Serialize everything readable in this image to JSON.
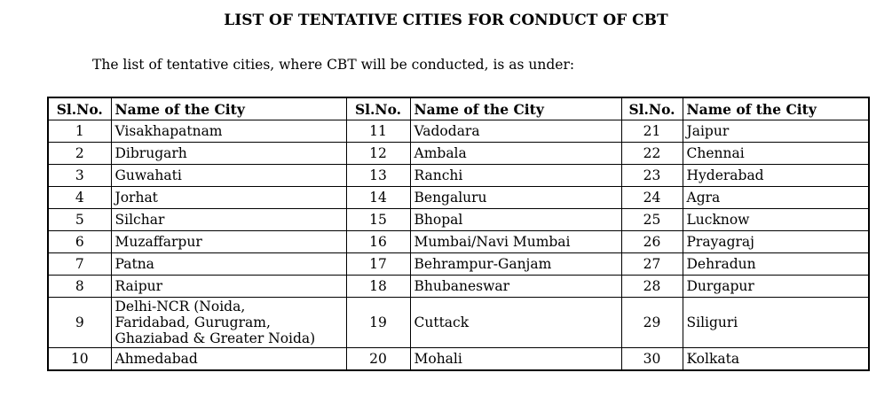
{
  "document": {
    "title": "LIST OF TENTATIVE CITIES FOR CONDUCT OF CBT",
    "intro": "The list of tentative cities, where CBT will be conducted, is as under:"
  },
  "table": {
    "header": {
      "slno": "Sl.No.",
      "city": "Name of the City"
    },
    "rows": [
      {
        "c1": {
          "slno": "1",
          "city": "Visakhapatnam"
        },
        "c2": {
          "slno": "11",
          "city": "Vadodara"
        },
        "c3": {
          "slno": "21",
          "city": "Jaipur"
        }
      },
      {
        "c1": {
          "slno": "2",
          "city": "Dibrugarh"
        },
        "c2": {
          "slno": "12",
          "city": "Ambala"
        },
        "c3": {
          "slno": "22",
          "city": "Chennai"
        }
      },
      {
        "c1": {
          "slno": "3",
          "city": "Guwahati"
        },
        "c2": {
          "slno": "13",
          "city": "Ranchi"
        },
        "c3": {
          "slno": "23",
          "city": "Hyderabad"
        }
      },
      {
        "c1": {
          "slno": "4",
          "city": "Jorhat"
        },
        "c2": {
          "slno": "14",
          "city": "Bengaluru"
        },
        "c3": {
          "slno": "24",
          "city": "Agra"
        }
      },
      {
        "c1": {
          "slno": "5",
          "city": "Silchar"
        },
        "c2": {
          "slno": "15",
          "city": "Bhopal"
        },
        "c3": {
          "slno": "25",
          "city": "Lucknow"
        }
      },
      {
        "c1": {
          "slno": "6",
          "city": "Muzaffarpur"
        },
        "c2": {
          "slno": "16",
          "city": "Mumbai/Navi Mumbai"
        },
        "c3": {
          "slno": "26",
          "city": "Prayagraj"
        }
      },
      {
        "c1": {
          "slno": "7",
          "city": "Patna"
        },
        "c2": {
          "slno": "17",
          "city": "Behrampur-Ganjam"
        },
        "c3": {
          "slno": "27",
          "city": "Dehradun"
        }
      },
      {
        "c1": {
          "slno": "8",
          "city": "Raipur"
        },
        "c2": {
          "slno": "18",
          "city": "Bhubaneswar"
        },
        "c3": {
          "slno": "28",
          "city": "Durgapur"
        }
      },
      {
        "c1": {
          "slno": "9",
          "city": "Delhi-NCR (Noida,\nFaridabad, Gurugram,\nGhaziabad & Greater Noida)"
        },
        "c2": {
          "slno": "19",
          "city": "Cuttack"
        },
        "c3": {
          "slno": "29",
          "city": "Siliguri"
        }
      },
      {
        "c1": {
          "slno": "10",
          "city": "Ahmedabad"
        },
        "c2": {
          "slno": "20",
          "city": "Mohali"
        },
        "c3": {
          "slno": "30",
          "city": "Kolkata"
        }
      }
    ]
  }
}
